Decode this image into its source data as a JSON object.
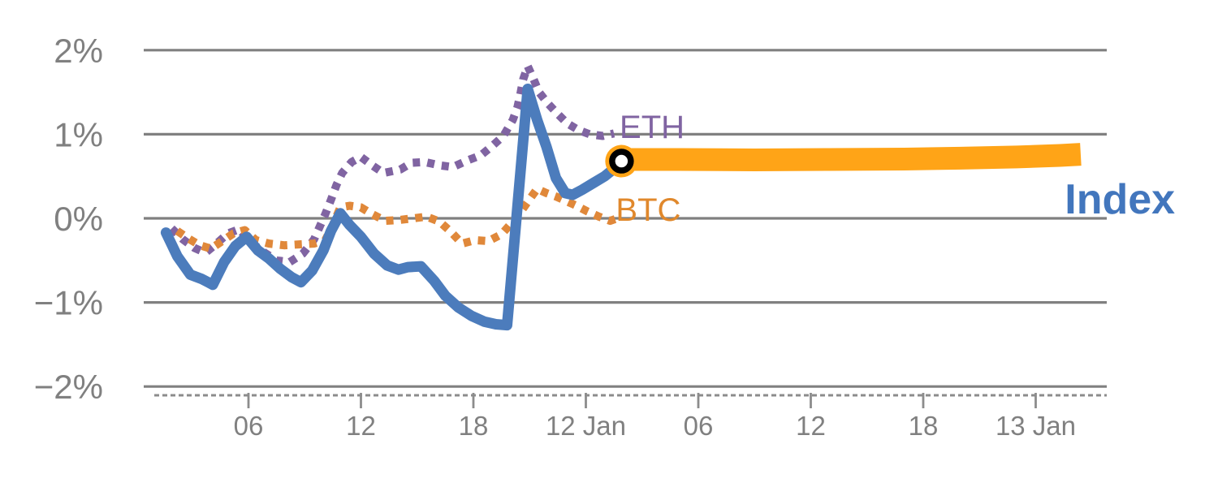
{
  "chart_data": {
    "type": "line",
    "title": "",
    "xlabel": "",
    "ylabel": "",
    "x_axis": {
      "unit": "hours since 11 Jan 00:00",
      "ticks": [
        {
          "t": 6,
          "label": "06"
        },
        {
          "t": 12,
          "label": "12"
        },
        {
          "t": 18,
          "label": "18"
        },
        {
          "t": 24,
          "label": "12 Jan"
        },
        {
          "t": 30,
          "label": "06"
        },
        {
          "t": 36,
          "label": "12"
        },
        {
          "t": 42,
          "label": "18"
        },
        {
          "t": 48,
          "label": "13 Jan"
        }
      ]
    },
    "y_axis": {
      "range": [
        -2,
        2
      ],
      "grid": true,
      "ticks": [
        {
          "v": 2,
          "label": "2%"
        },
        {
          "v": 1,
          "label": "1%"
        },
        {
          "v": 0,
          "label": "0%"
        },
        {
          "v": -1,
          "label": "−1%"
        },
        {
          "v": -2,
          "label": "−2%"
        }
      ]
    },
    "series": [
      {
        "name": "ETH",
        "color": "#8064A2",
        "style": "dotted",
        "points": [
          [
            1.9,
            -0.12
          ],
          [
            2.5,
            -0.25
          ],
          [
            3.1,
            -0.35
          ],
          [
            3.7,
            -0.41
          ],
          [
            4.3,
            -0.3
          ],
          [
            4.9,
            -0.18
          ],
          [
            5.5,
            -0.13
          ],
          [
            6.1,
            -0.28
          ],
          [
            6.8,
            -0.4
          ],
          [
            7.5,
            -0.5
          ],
          [
            8.2,
            -0.52
          ],
          [
            8.9,
            -0.42
          ],
          [
            9.5,
            -0.25
          ],
          [
            10.1,
            0.05
          ],
          [
            10.4,
            0.22
          ],
          [
            10.7,
            0.4
          ],
          [
            11.0,
            0.54
          ],
          [
            11.5,
            0.67
          ],
          [
            12.0,
            0.73
          ],
          [
            12.6,
            0.63
          ],
          [
            13.2,
            0.54
          ],
          [
            14.1,
            0.58
          ],
          [
            14.7,
            0.66
          ],
          [
            15.4,
            0.67
          ],
          [
            16.2,
            0.63
          ],
          [
            16.9,
            0.61
          ],
          [
            17.7,
            0.69
          ],
          [
            18.4,
            0.75
          ],
          [
            19.0,
            0.86
          ],
          [
            19.6,
            0.98
          ],
          [
            20.1,
            1.17
          ],
          [
            20.35,
            1.32
          ],
          [
            20.5,
            1.47
          ],
          [
            20.65,
            1.65
          ],
          [
            20.9,
            1.81
          ],
          [
            21.2,
            1.66
          ],
          [
            21.5,
            1.5
          ],
          [
            22.0,
            1.36
          ],
          [
            22.5,
            1.24
          ],
          [
            23.0,
            1.13
          ],
          [
            23.6,
            1.05
          ],
          [
            24.2,
            1.0
          ],
          [
            24.9,
            0.98
          ],
          [
            25.5,
            1.01
          ]
        ]
      },
      {
        "name": "BTC",
        "color": "#E0883A",
        "style": "dotted",
        "points": [
          [
            2.2,
            -0.15
          ],
          [
            2.8,
            -0.24
          ],
          [
            3.4,
            -0.32
          ],
          [
            4.0,
            -0.36
          ],
          [
            4.6,
            -0.27
          ],
          [
            5.2,
            -0.18
          ],
          [
            5.8,
            -0.14
          ],
          [
            6.4,
            -0.26
          ],
          [
            7.1,
            -0.3
          ],
          [
            7.9,
            -0.32
          ],
          [
            8.7,
            -0.31
          ],
          [
            9.5,
            -0.3
          ],
          [
            10.1,
            -0.26
          ],
          [
            10.5,
            -0.08
          ],
          [
            10.9,
            0.13
          ],
          [
            11.4,
            0.15
          ],
          [
            12.0,
            0.13
          ],
          [
            12.6,
            0.05
          ],
          [
            13.3,
            -0.03
          ],
          [
            14.0,
            -0.02
          ],
          [
            14.8,
            0.0
          ],
          [
            15.5,
            0.02
          ],
          [
            16.2,
            -0.04
          ],
          [
            16.8,
            -0.16
          ],
          [
            17.4,
            -0.3
          ],
          [
            18.1,
            -0.26
          ],
          [
            18.8,
            -0.27
          ],
          [
            19.5,
            -0.19
          ],
          [
            20.1,
            -0.04
          ],
          [
            20.6,
            0.1
          ],
          [
            21.1,
            0.26
          ],
          [
            21.4,
            0.35
          ],
          [
            21.9,
            0.3
          ],
          [
            22.4,
            0.26
          ],
          [
            22.9,
            0.21
          ],
          [
            23.5,
            0.15
          ],
          [
            24.1,
            0.08
          ],
          [
            24.7,
            0.02
          ],
          [
            25.3,
            -0.03
          ],
          [
            25.8,
            0.01
          ]
        ]
      },
      {
        "name": "Index",
        "color": "#4C7CBC",
        "style": "solid",
        "points": [
          [
            1.6,
            -0.17
          ],
          [
            2.2,
            -0.45
          ],
          [
            2.9,
            -0.67
          ],
          [
            3.5,
            -0.72
          ],
          [
            4.1,
            -0.79
          ],
          [
            4.7,
            -0.52
          ],
          [
            5.3,
            -0.33
          ],
          [
            5.9,
            -0.22
          ],
          [
            6.5,
            -0.38
          ],
          [
            7.1,
            -0.48
          ],
          [
            7.7,
            -0.6
          ],
          [
            8.3,
            -0.7
          ],
          [
            8.8,
            -0.76
          ],
          [
            9.4,
            -0.62
          ],
          [
            10.0,
            -0.38
          ],
          [
            10.4,
            -0.15
          ],
          [
            10.9,
            0.06
          ],
          [
            11.4,
            -0.08
          ],
          [
            12.0,
            -0.22
          ],
          [
            12.7,
            -0.42
          ],
          [
            13.4,
            -0.56
          ],
          [
            14.0,
            -0.61
          ],
          [
            14.5,
            -0.58
          ],
          [
            15.2,
            -0.57
          ],
          [
            15.9,
            -0.74
          ],
          [
            16.5,
            -0.92
          ],
          [
            17.2,
            -1.06
          ],
          [
            17.9,
            -1.16
          ],
          [
            18.6,
            -1.23
          ],
          [
            19.2,
            -1.26
          ],
          [
            19.8,
            -1.27
          ],
          [
            20.9,
            1.54
          ],
          [
            21.4,
            1.17
          ],
          [
            21.9,
            0.85
          ],
          [
            22.4,
            0.48
          ],
          [
            22.9,
            0.3
          ],
          [
            23.3,
            0.28
          ],
          [
            23.8,
            0.34
          ],
          [
            24.4,
            0.42
          ],
          [
            25.0,
            0.5
          ],
          [
            25.5,
            0.59
          ],
          [
            25.9,
            0.68
          ]
        ]
      }
    ],
    "forecast": {
      "name": "Index forecast",
      "color": "#FFA417",
      "style": "band",
      "points": [
        [
          25.9,
          0.7
        ],
        [
          29,
          0.7
        ],
        [
          33,
          0.695
        ],
        [
          37,
          0.7
        ],
        [
          41,
          0.705
        ],
        [
          44,
          0.715
        ],
        [
          47,
          0.73
        ],
        [
          49.3,
          0.748
        ],
        [
          50.4,
          0.762
        ]
      ]
    },
    "marker": {
      "t": 25.9,
      "v": 0.68,
      "halo_color": "#FFA417",
      "ring_color": "#000000",
      "center_color": "#FFFFFF"
    },
    "annotations": [
      {
        "id": "eth-label",
        "text": "ETH",
        "color": "#8064A2",
        "t": 25.8,
        "v": 0.955,
        "size": 40,
        "bold": false
      },
      {
        "id": "btc-label",
        "text": "BTC",
        "color": "#E0882C",
        "t": 25.6,
        "v": -0.03,
        "size": 40,
        "bold": false
      },
      {
        "id": "index-label",
        "text": "Index",
        "color": "#4276BD",
        "t": 49.55,
        "v": 0.06,
        "size": 52,
        "bold": true
      }
    ],
    "colors": {
      "grid": "#808080",
      "axis": "#8C8C8C",
      "tick_text": "#808080"
    }
  }
}
